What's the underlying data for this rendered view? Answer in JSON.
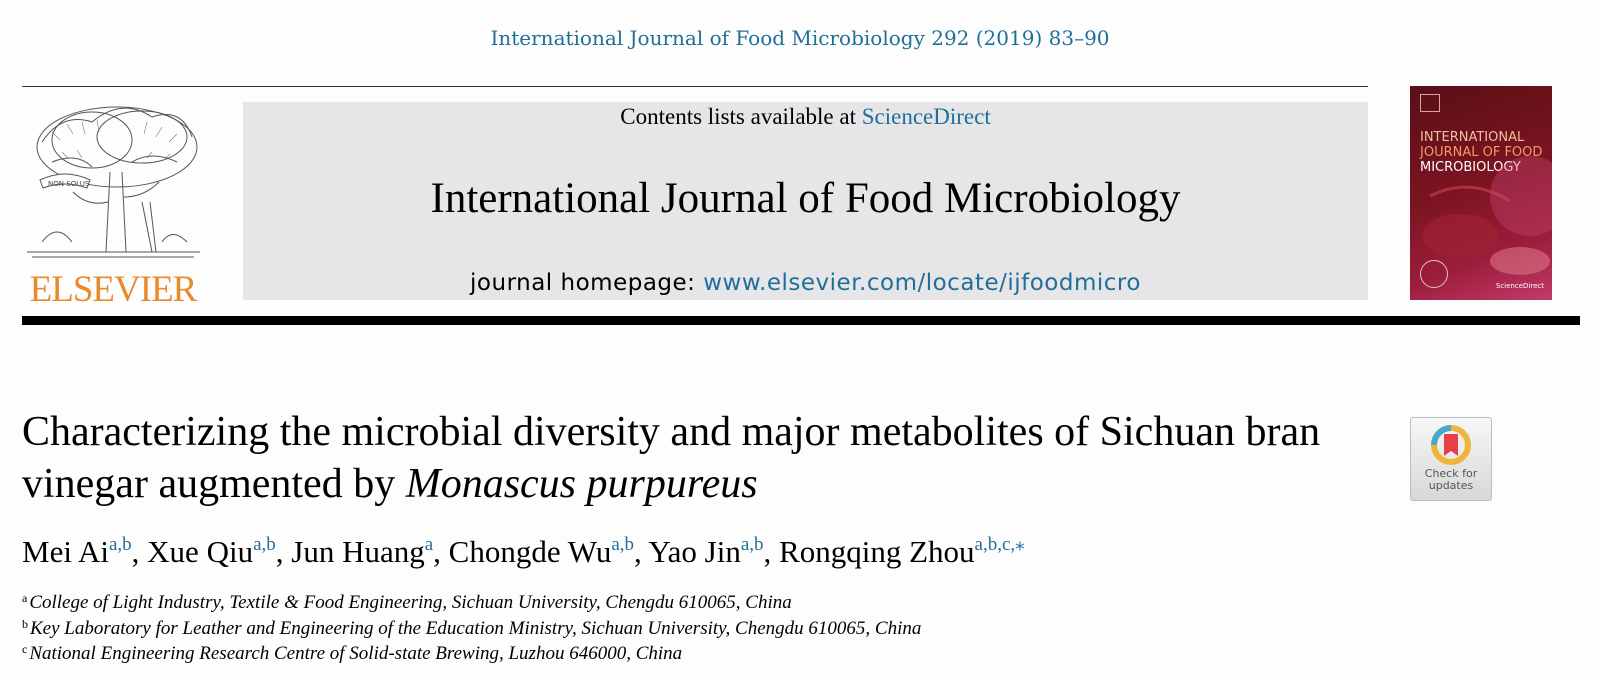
{
  "header": {
    "citation": "International Journal of Food Microbiology 292 (2019) 83–90",
    "contents_prefix": "Contents lists available at",
    "contents_link": "ScienceDirect",
    "journal_title": "International Journal of Food Microbiology",
    "homepage_label": "journal homepage:",
    "homepage_url": "www.elsevier.com/locate/ijfoodmicro",
    "publisher_name": "ELSEVIER",
    "publisher_motto": "NON SOLUS"
  },
  "cover": {
    "title_line1": "INTERNATIONAL",
    "title_line2": "JOURNAL OF FOOD",
    "title_line3": "MICROBIOLOGY",
    "footer": "ScienceDirect"
  },
  "article": {
    "title_part1": "Characterizing the microbial diversity and major metabolites of Sichuan bran vinegar augmented by",
    "title_italic": "Monascus purpureus",
    "update_badge_line1": "Check for",
    "update_badge_line2": "updates"
  },
  "authors": [
    {
      "name": "Mei Ai",
      "affil": "a,b",
      "sep": ", "
    },
    {
      "name": "Xue Qiu",
      "affil": "a,b",
      "sep": ", "
    },
    {
      "name": "Jun Huang",
      "affil": "a",
      "sep": ", "
    },
    {
      "name": "Chongde Wu",
      "affil": "a,b",
      "sep": ", "
    },
    {
      "name": "Yao Jin",
      "affil": "a,b",
      "sep": ", "
    },
    {
      "name": "Rongqing Zhou",
      "affil": "a,b,c,⁎",
      "sep": ""
    }
  ],
  "affiliations": [
    {
      "key": "a",
      "text": "College of Light Industry, Textile & Food Engineering, Sichuan University, Chengdu 610065, China"
    },
    {
      "key": "b",
      "text": "Key Laboratory for Leather and Engineering of the Education Ministry, Sichuan University, Chengdu 610065, China"
    },
    {
      "key": "c",
      "text": "National Engineering Research Centre of Solid-state Brewing, Luzhou 646000, China"
    }
  ],
  "colors": {
    "link": "#1f6f9a",
    "publisher_orange": "#e98a2b",
    "masthead_bg": "#e6e5e7"
  },
  "icons": {
    "publisher_logo": "tree-engraving-icon",
    "update_badge": "bookmark-check-icon"
  }
}
